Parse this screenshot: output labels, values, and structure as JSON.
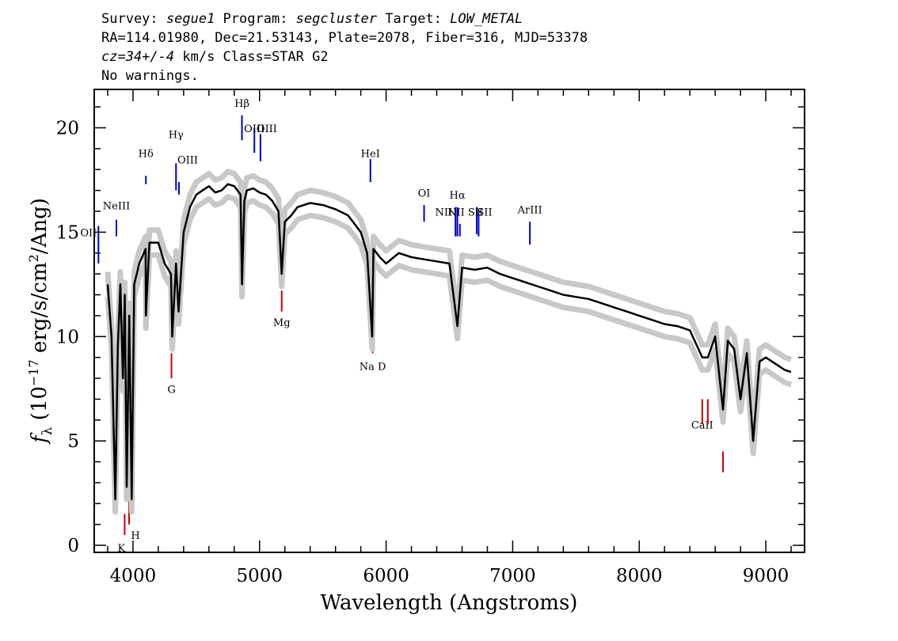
{
  "header": {
    "line1": {
      "survey_label": "Survey: ",
      "survey": "segue1",
      "program_label": " Program: ",
      "program": "segcluster",
      "target_label": " Target: ",
      "target": "LOW_METAL"
    },
    "line2": "RA=114.01980, Dec=21.53143, Plate=2078, Fiber=316, MJD=53378",
    "line3": {
      "cz": "cz=34+/-4",
      "rest": " km/s Class=STAR G2"
    },
    "line4": "No warnings."
  },
  "colors": {
    "flux": "#000000",
    "error_band": "#c8c8c8",
    "emission_marker": "#0000cc",
    "absorption_marker": "#cc0000"
  },
  "chart_data": {
    "type": "line",
    "xlabel": "Wavelength (Angstroms)",
    "ylabel_parts": [
      "f",
      "λ",
      " (10",
      "−17",
      " erg/s/cm",
      "2",
      "/Ang)"
    ],
    "xlim": [
      3700,
      9300
    ],
    "ylim": [
      -0.3,
      21.8
    ],
    "x_ticks": [
      4000,
      5000,
      6000,
      7000,
      8000,
      9000
    ],
    "y_ticks": [
      0,
      5,
      10,
      15,
      20
    ],
    "grid": false,
    "series": [
      {
        "role": "flux",
        "x": [
          3800,
          3830,
          3860,
          3880,
          3900,
          3920,
          3935,
          3950,
          3970,
          3990,
          4010,
          4050,
          4100,
          4102,
          4130,
          4200,
          4250,
          4300,
          4310,
          4340,
          4360,
          4400,
          4450,
          4500,
          4550,
          4600,
          4650,
          4700,
          4750,
          4800,
          4850,
          4861,
          4880,
          4900,
          4950,
          5000,
          5050,
          5100,
          5150,
          5175,
          5200,
          5250,
          5300,
          5400,
          5500,
          5600,
          5700,
          5800,
          5850,
          5890,
          5900,
          5950,
          6000,
          6100,
          6200,
          6300,
          6400,
          6500,
          6563,
          6600,
          6700,
          6800,
          6900,
          7000,
          7100,
          7200,
          7300,
          7400,
          7500,
          7600,
          7700,
          7800,
          7900,
          8000,
          8100,
          8200,
          8300,
          8400,
          8498,
          8542,
          8600,
          8662,
          8700,
          8750,
          8800,
          8850,
          8900,
          8950,
          9000,
          9050,
          9100,
          9150,
          9200
        ],
        "y": [
          12.5,
          10.0,
          2.2,
          9.5,
          12.5,
          8.0,
          12.0,
          2.8,
          11.0,
          2.2,
          12.5,
          13.5,
          14.2,
          11.0,
          14.5,
          14.5,
          13.5,
          13.0,
          10.0,
          13.5,
          11.2,
          15.0,
          16.2,
          16.8,
          17.0,
          17.2,
          16.9,
          17.0,
          17.3,
          17.2,
          16.8,
          12.5,
          16.5,
          17.0,
          17.1,
          16.9,
          16.8,
          16.5,
          16.0,
          13.0,
          15.5,
          15.8,
          16.2,
          16.4,
          16.3,
          16.1,
          15.8,
          15.0,
          14.0,
          10.0,
          14.2,
          13.8,
          13.5,
          14.0,
          13.8,
          13.7,
          13.6,
          13.5,
          10.5,
          13.3,
          13.2,
          13.3,
          13.0,
          12.8,
          12.6,
          12.4,
          12.2,
          12.0,
          11.9,
          11.8,
          11.6,
          11.4,
          11.2,
          11.0,
          10.8,
          10.6,
          10.5,
          10.3,
          9.0,
          9.0,
          10.0,
          6.5,
          9.8,
          9.4,
          7.0,
          9.2,
          5.0,
          8.8,
          9.0,
          8.8,
          8.6,
          8.4,
          8.3
        ]
      }
    ],
    "emission_lines": [
      {
        "label": "OII",
        "x": 3727
      },
      {
        "label": "NeIII",
        "x": 3869
      },
      {
        "label": "Hδ",
        "x": 4102
      },
      {
        "label": "Hγ",
        "x": 4340
      },
      {
        "label": "OIII",
        "x": 4363
      },
      {
        "label": "Hβ",
        "x": 4861
      },
      {
        "label": "OIII",
        "x": 4959
      },
      {
        "label": "OIII",
        "x": 5007
      },
      {
        "label": "HeI",
        "x": 5876
      },
      {
        "label": "OI",
        "x": 6300
      },
      {
        "label": "NII",
        "x": 6548
      },
      {
        "label": "Hα",
        "x": 6563
      },
      {
        "label": "NII",
        "x": 6583
      },
      {
        "label": "SII",
        "x": 6716
      },
      {
        "label": "SII",
        "x": 6731
      },
      {
        "label": "ArIII",
        "x": 7136
      }
    ],
    "absorption_lines": [
      {
        "label": "K",
        "x": 3934
      },
      {
        "label": "H",
        "x": 3969
      },
      {
        "label": "G",
        "x": 4304
      },
      {
        "label": "Mg",
        "x": 5175
      },
      {
        "label": "Na D",
        "x": 5894
      },
      {
        "label": "CaII",
        "x": 8498
      },
      {
        "label": "CaII",
        "x": 8542
      },
      {
        "label": "CaII",
        "x": 8662
      }
    ]
  }
}
